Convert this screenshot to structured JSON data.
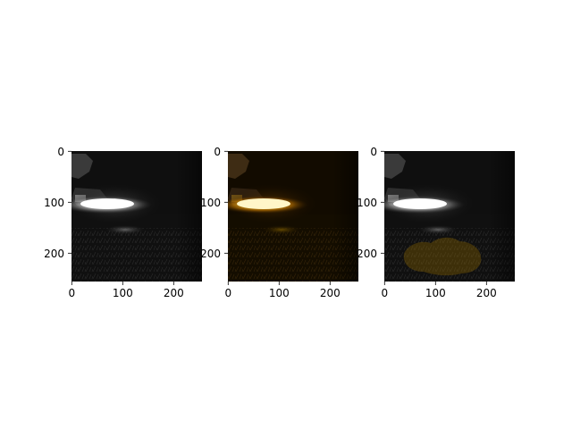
{
  "figure": {
    "background": "#ffffff",
    "panels": [
      {
        "name": "grayscale-original",
        "description_tint": "grayscale",
        "xticks": [
          "0",
          "100",
          "200"
        ],
        "yticks": [
          "0",
          "100",
          "200"
        ]
      },
      {
        "name": "orange-tinted",
        "description_tint": "orange",
        "xticks": [
          "0",
          "100",
          "200"
        ],
        "yticks": [
          "0",
          "100",
          "200"
        ]
      },
      {
        "name": "grayscale-with-orange-mask",
        "description_tint": "grayscale-mask",
        "xticks": [
          "0",
          "100",
          "200"
        ],
        "yticks": [
          "0",
          "100",
          "200"
        ]
      }
    ],
    "colors": {
      "tint": "#ffaa00",
      "mask": "#8a6400",
      "highlight": "#ffffff"
    }
  }
}
